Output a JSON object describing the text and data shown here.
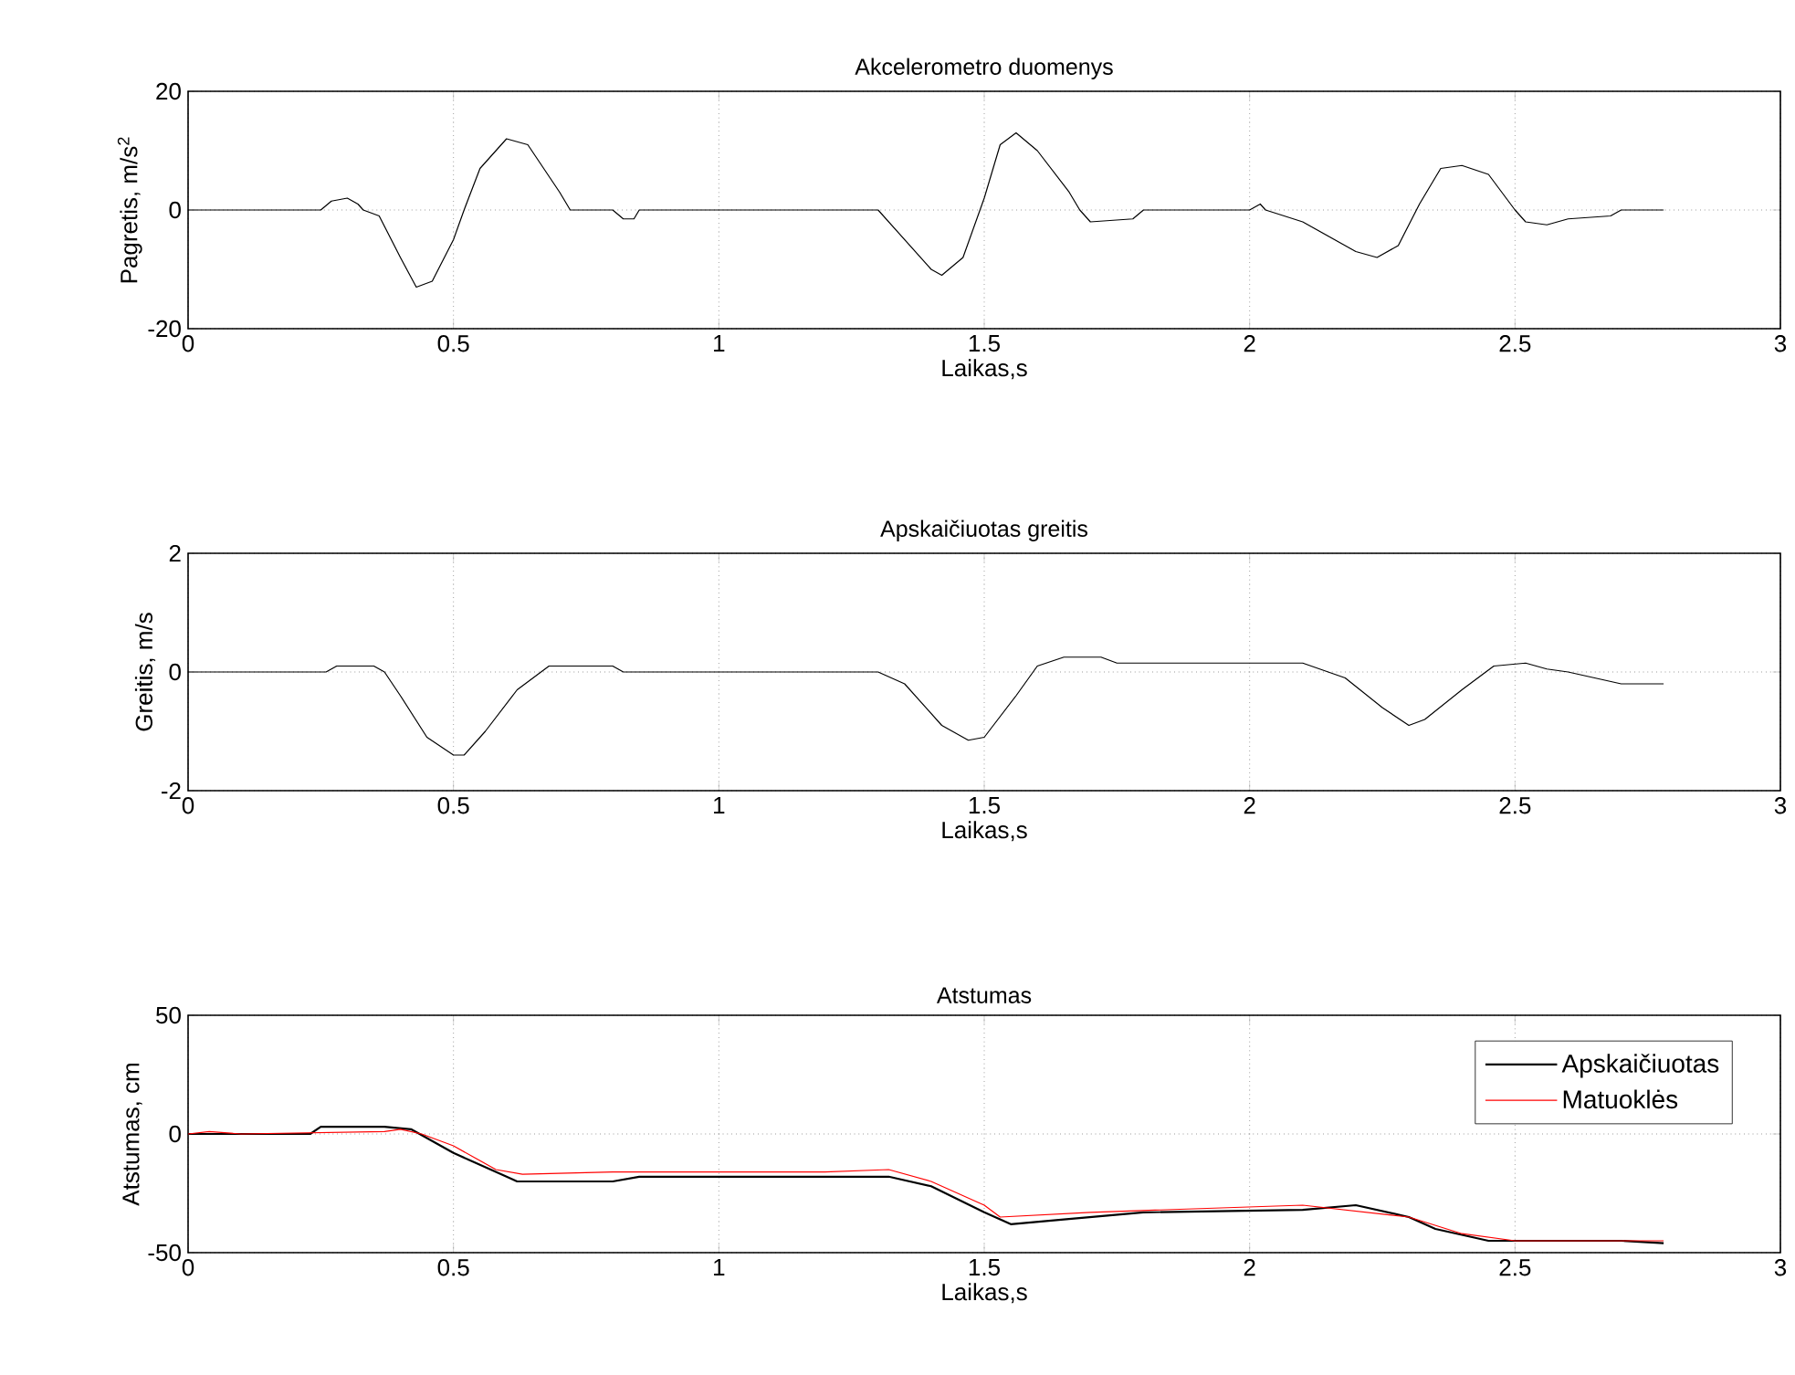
{
  "chart_data": [
    {
      "type": "line",
      "title": "Akcelerometro duomenys",
      "xlabel": "Laikas,s",
      "ylabel": "Pagretis, m/s$^{2}$",
      "xlim": [
        0,
        3
      ],
      "ylim": [
        -20,
        20
      ],
      "xticks": [
        0,
        0.5,
        1,
        1.5,
        2,
        2.5,
        3
      ],
      "yticks": [
        -20,
        0,
        20
      ],
      "grid": true,
      "series": [
        {
          "color": "#000000",
          "x": [
            0,
            0.25,
            0.27,
            0.3,
            0.32,
            0.33,
            0.36,
            0.4,
            0.43,
            0.46,
            0.5,
            0.52,
            0.55,
            0.6,
            0.64,
            0.7,
            0.72,
            0.8,
            0.82,
            0.84,
            0.85,
            1.3,
            1.4,
            1.42,
            1.46,
            1.5,
            1.53,
            1.56,
            1.6,
            1.66,
            1.68,
            1.7,
            1.78,
            1.8,
            2.0,
            2.02,
            2.03,
            2.1,
            2.2,
            2.24,
            2.28,
            2.32,
            2.36,
            2.4,
            2.45,
            2.5,
            2.52,
            2.56,
            2.6,
            2.68,
            2.7,
            2.78
          ],
          "values": [
            0,
            0,
            1.5,
            2,
            1,
            0,
            -1,
            -8,
            -13,
            -12,
            -5,
            0,
            7,
            12,
            11,
            3,
            0,
            0,
            -1.5,
            -1.5,
            0,
            0,
            -10,
            -11,
            -8,
            2,
            11,
            13,
            10,
            3,
            0,
            -2,
            -1.5,
            0,
            0,
            1,
            0,
            -2,
            -7,
            -8,
            -6,
            1,
            7,
            7.5,
            6,
            0,
            -2,
            -2.5,
            -1.5,
            -1,
            0,
            0
          ]
        }
      ]
    },
    {
      "type": "line",
      "title": "Apskaičiuotas greitis",
      "xlabel": "Laikas,s",
      "ylabel": "Greitis, m/s",
      "xlim": [
        0,
        3
      ],
      "ylim": [
        -2,
        2
      ],
      "xticks": [
        0,
        0.5,
        1,
        1.5,
        2,
        2.5,
        3
      ],
      "yticks": [
        -2,
        0,
        2
      ],
      "grid": true,
      "series": [
        {
          "color": "#000000",
          "x": [
            0,
            0.26,
            0.28,
            0.35,
            0.37,
            0.4,
            0.45,
            0.5,
            0.52,
            0.56,
            0.62,
            0.68,
            0.8,
            0.82,
            1.3,
            1.35,
            1.42,
            1.47,
            1.5,
            1.56,
            1.6,
            1.65,
            1.72,
            1.75,
            2.1,
            2.18,
            2.25,
            2.3,
            2.33,
            2.4,
            2.46,
            2.52,
            2.56,
            2.6,
            2.65,
            2.7,
            2.78
          ],
          "values": [
            0,
            0,
            0.1,
            0.1,
            0,
            -0.4,
            -1.1,
            -1.4,
            -1.4,
            -1,
            -0.3,
            0.1,
            0.1,
            0,
            0,
            -0.2,
            -0.9,
            -1.15,
            -1.1,
            -0.4,
            0.1,
            0.25,
            0.25,
            0.15,
            0.15,
            -0.1,
            -0.6,
            -0.9,
            -0.8,
            -0.3,
            0.1,
            0.15,
            0.05,
            0,
            -0.1,
            -0.2,
            -0.2
          ]
        }
      ]
    },
    {
      "type": "line",
      "title": "Atstumas",
      "xlabel": "Laikas,s",
      "ylabel": "Atstumas, cm",
      "xlim": [
        0,
        3
      ],
      "ylim": [
        -50,
        50
      ],
      "xticks": [
        0,
        0.5,
        1,
        1.5,
        2,
        2.5,
        3
      ],
      "yticks": [
        -50,
        0,
        50
      ],
      "grid": true,
      "legend": "top right",
      "series": [
        {
          "name": "Apskaičiuotas",
          "color": "#000000",
          "x": [
            0,
            0.23,
            0.25,
            0.37,
            0.42,
            0.5,
            0.6,
            0.62,
            0.8,
            0.85,
            1.32,
            1.4,
            1.5,
            1.55,
            1.65,
            1.8,
            2.1,
            2.2,
            2.3,
            2.35,
            2.45,
            2.7,
            2.78
          ],
          "values": [
            0,
            0,
            3,
            3,
            2,
            -8,
            -18,
            -20,
            -20,
            -18,
            -18,
            -22,
            -33,
            -38,
            -36,
            -33,
            -32,
            -30,
            -35,
            -40,
            -45,
            -45,
            -46
          ]
        },
        {
          "name": "Matuoklės",
          "color": "#ff0000",
          "x": [
            0,
            0.04,
            0.1,
            0.37,
            0.4,
            0.44,
            0.5,
            0.58,
            0.63,
            0.8,
            1.2,
            1.32,
            1.4,
            1.5,
            1.53,
            1.7,
            2.1,
            2.3,
            2.4,
            2.5,
            2.78
          ],
          "values": [
            0,
            1,
            0,
            1,
            2,
            0,
            -5,
            -15,
            -17,
            -16,
            -16,
            -15,
            -20,
            -30,
            -35,
            -33,
            -30,
            -35,
            -42,
            -45,
            -45
          ]
        }
      ]
    }
  ]
}
